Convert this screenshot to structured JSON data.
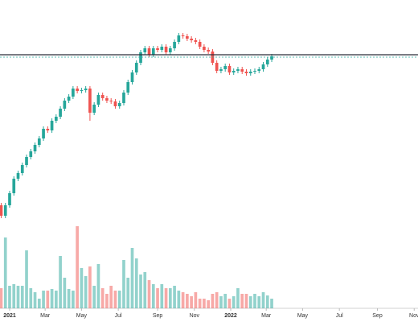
{
  "chart_data": {
    "type": "candlestick",
    "x": [
      -2,
      -1,
      0,
      1,
      2,
      3,
      4,
      5,
      6,
      7,
      8,
      9,
      10,
      11,
      12,
      13,
      14,
      15,
      16,
      17,
      18,
      19,
      20,
      21,
      22,
      23,
      24,
      25,
      26,
      27,
      28,
      29,
      30,
      31,
      32,
      33,
      34,
      35,
      36,
      37,
      38,
      39,
      40,
      41,
      42,
      43,
      44,
      45,
      46,
      47,
      48,
      49,
      50,
      51,
      52,
      53,
      54,
      55,
      56,
      57,
      58,
      59,
      60,
      61,
      62
    ],
    "open": [
      45,
      32,
      45,
      60,
      78,
      85,
      95,
      105,
      112,
      120,
      128,
      140,
      138,
      150,
      155,
      165,
      175,
      180,
      190,
      187,
      188,
      190,
      160,
      170,
      182,
      178,
      175,
      174,
      168,
      172,
      185,
      198,
      210,
      222,
      235,
      240,
      232,
      240,
      238,
      242,
      235,
      240,
      248,
      256,
      255,
      252,
      250,
      248,
      242,
      238,
      236,
      222,
      212,
      214,
      218,
      210,
      212,
      214,
      211,
      209,
      211,
      212,
      214,
      220,
      226
    ],
    "high": [
      48,
      48,
      63,
      81,
      88,
      98,
      108,
      115,
      123,
      131,
      143,
      143,
      153,
      158,
      168,
      178,
      183,
      193,
      193,
      191,
      193,
      193,
      173,
      185,
      185,
      181,
      178,
      177,
      175,
      188,
      201,
      213,
      225,
      238,
      243,
      243,
      243,
      243,
      245,
      245,
      243,
      251,
      259,
      259,
      258,
      255,
      253,
      251,
      245,
      241,
      239,
      225,
      217,
      221,
      221,
      215,
      217,
      217,
      214,
      214,
      215,
      217,
      223,
      229,
      233
    ],
    "low": [
      29,
      29,
      42,
      57,
      75,
      82,
      92,
      102,
      109,
      117,
      125,
      135,
      135,
      147,
      152,
      162,
      172,
      177,
      184,
      184,
      185,
      150,
      157,
      167,
      175,
      172,
      171,
      165,
      165,
      169,
      182,
      195,
      207,
      219,
      232,
      229,
      229,
      235,
      235,
      232,
      232,
      237,
      245,
      252,
      249,
      247,
      245,
      239,
      235,
      233,
      219,
      209,
      209,
      211,
      207,
      207,
      209,
      208,
      206,
      206,
      208,
      209,
      211,
      217,
      223
    ],
    "close": [
      32,
      45,
      60,
      78,
      85,
      95,
      105,
      112,
      120,
      128,
      140,
      138,
      150,
      155,
      165,
      175,
      180,
      190,
      187,
      188,
      190,
      160,
      170,
      182,
      178,
      175,
      174,
      168,
      172,
      185,
      198,
      210,
      222,
      235,
      240,
      232,
      240,
      238,
      242,
      235,
      240,
      248,
      256,
      255,
      252,
      250,
      248,
      242,
      238,
      236,
      222,
      212,
      214,
      218,
      210,
      212,
      214,
      211,
      209,
      211,
      212,
      214,
      220,
      226,
      230
    ],
    "volume": [
      25,
      88,
      28,
      30,
      28,
      28,
      72,
      25,
      20,
      12,
      22,
      22,
      24,
      22,
      65,
      38,
      24,
      22,
      102,
      50,
      40,
      52,
      28,
      55,
      25,
      18,
      28,
      22,
      22,
      60,
      38,
      75,
      62,
      42,
      45,
      35,
      30,
      25,
      30,
      25,
      25,
      28,
      22,
      20,
      18,
      15,
      20,
      12,
      12,
      10,
      18,
      20,
      15,
      18,
      12,
      15,
      25,
      18,
      18,
      15,
      18,
      15,
      20,
      16,
      12
    ],
    "up_color": "#26a69a",
    "down_color": "#ef5350",
    "price_line": 232,
    "last_price_line": 229,
    "xlim": [
      -2.28,
      96.6
    ],
    "ylim": [
      -83,
      300
    ],
    "vlim": [
      0,
      110
    ],
    "xticks": [
      {
        "value": 0,
        "label": "2021"
      },
      {
        "value": 8.4,
        "label": "Mar"
      },
      {
        "value": 17,
        "label": "May"
      },
      {
        "value": 25.7,
        "label": "Jul"
      },
      {
        "value": 35,
        "label": "Sep"
      },
      {
        "value": 43.7,
        "label": "Nov"
      },
      {
        "value": 52.3,
        "label": "2022"
      },
      {
        "value": 60.7,
        "label": "Mar"
      },
      {
        "value": 69.3,
        "label": "May"
      },
      {
        "value": 78,
        "label": "Jul"
      },
      {
        "value": 87,
        "label": "Sep"
      },
      {
        "value": 95.7,
        "label": "Nov"
      }
    ]
  }
}
